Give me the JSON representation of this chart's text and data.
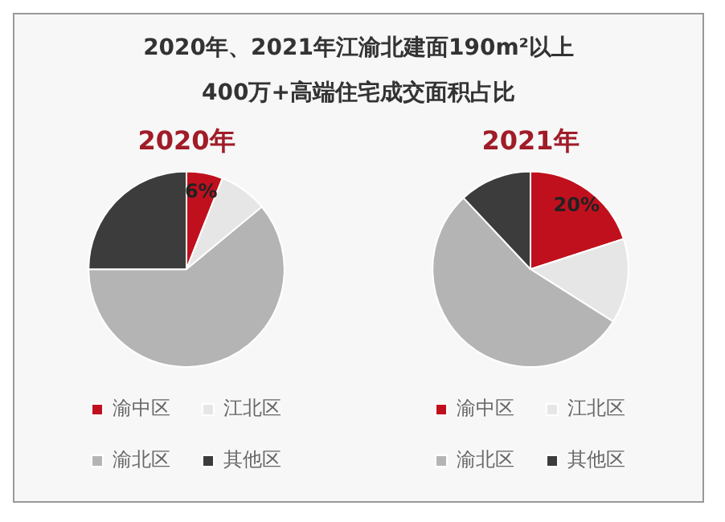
{
  "chart_data": [
    {
      "type": "pie",
      "title": "2020年",
      "annotations": [
        "2020年、2021年江渝北建面190m²以上",
        "400万+高端住宅成交面积占比"
      ],
      "categories": [
        "渝中区",
        "江北区",
        "渝北区",
        "其他区"
      ],
      "values": [
        6,
        8,
        61,
        25
      ],
      "colors": [
        "#c0101e",
        "#e6e6e6",
        "#b4b4b4",
        "#3c3c3c"
      ],
      "value_labels": [
        "6%",
        null,
        null,
        null
      ],
      "legend": "bottom"
    },
    {
      "type": "pie",
      "title": "2021年",
      "categories": [
        "渝中区",
        "江北区",
        "渝北区",
        "其他区"
      ],
      "values": [
        20,
        14,
        54,
        12
      ],
      "colors": [
        "#c0101e",
        "#e6e6e6",
        "#b4b4b4",
        "#3c3c3c"
      ],
      "value_labels": [
        "20%",
        null,
        null,
        null
      ],
      "legend": "bottom"
    }
  ]
}
